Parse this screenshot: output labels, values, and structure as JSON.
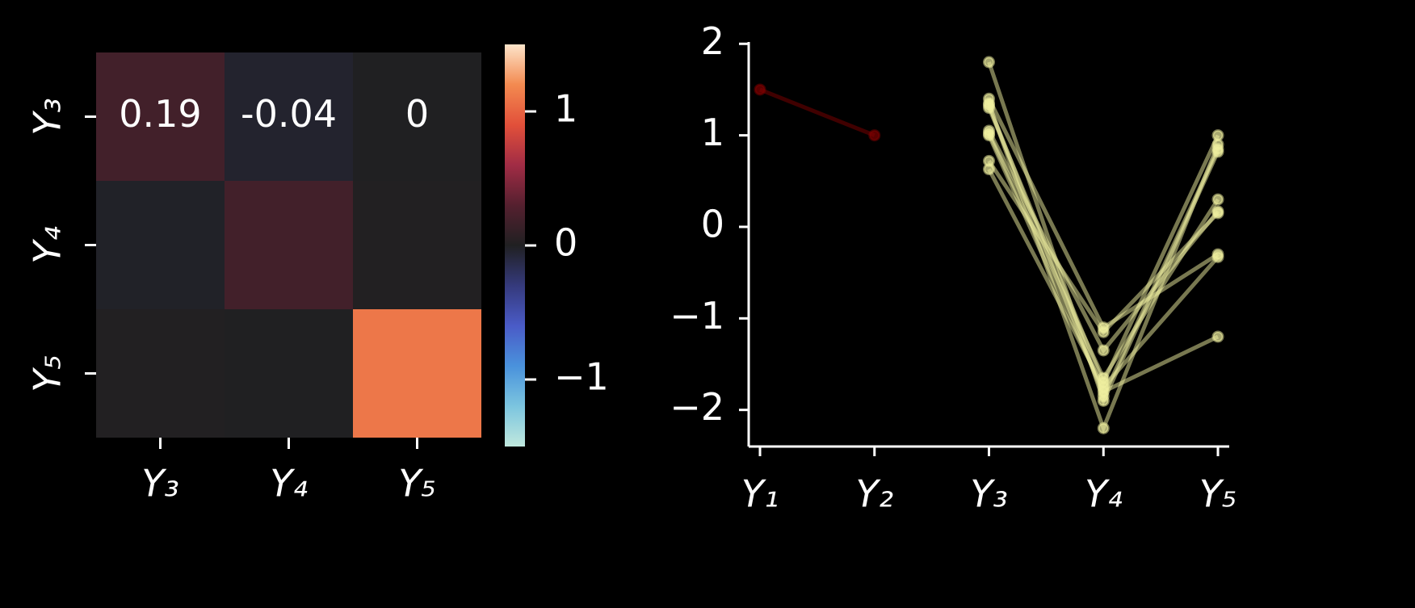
{
  "chart_data": [
    {
      "type": "heatmap",
      "categories": [
        "Y₃",
        "Y₄",
        "Y₅"
      ],
      "values": [
        [
          0.19,
          -0.04,
          0
        ],
        [
          -0.02,
          0.19,
          0.01
        ],
        [
          0.01,
          0.0,
          1.1
        ]
      ],
      "value_labels": [
        [
          "0.19",
          "-0.04",
          "0"
        ],
        [
          null,
          null,
          null
        ],
        [
          null,
          null,
          null
        ]
      ],
      "colorscale": [
        "#c0e8de",
        "#7cc5df",
        "#4a92dc",
        "#4a5bc7",
        "#353a7c",
        "#202022",
        "#55202f",
        "#a12c45",
        "#e2503a",
        "#f38a50",
        "#fde4ca"
      ],
      "clim": [
        -1.5,
        1.5
      ],
      "cticks": [
        1,
        0,
        {
          "value": -1,
          "label": "−1"
        }
      ]
    },
    {
      "type": "line",
      "categories": [
        "Y₁",
        "Y₂",
        "Y₃",
        "Y₄",
        "Y₅"
      ],
      "ylim": [
        -2.4,
        2.02
      ],
      "yticks": [
        2,
        1,
        0,
        {
          "value": -1,
          "label": "−1"
        },
        {
          "value": -2,
          "label": "−2"
        }
      ],
      "series": [
        {
          "color": "#800000",
          "values": [
            1.5,
            1.0,
            null,
            null,
            null
          ]
        },
        {
          "color": "#f0f0a0",
          "values": [
            null,
            null,
            1.8,
            -1.9,
            0.82
          ]
        },
        {
          "color": "#f0f0a0",
          "values": [
            null,
            null,
            1.4,
            -1.1,
            -0.3
          ]
        },
        {
          "color": "#f0f0a0",
          "values": [
            null,
            null,
            1.35,
            -2.2,
            0.9
          ]
        },
        {
          "color": "#f0f0a0",
          "values": [
            null,
            null,
            1.3,
            -1.7,
            1.0
          ]
        },
        {
          "color": "#f0f0a0",
          "values": [
            null,
            null,
            1.05,
            -1.35,
            0.17
          ]
        },
        {
          "color": "#f0f0a0",
          "values": [
            null,
            null,
            1.02,
            -1.65,
            0.3
          ]
        },
        {
          "color": "#f0f0a0",
          "values": [
            null,
            null,
            1.0,
            -1.8,
            -1.2
          ]
        },
        {
          "color": "#f0f0a0",
          "values": [
            null,
            null,
            0.72,
            -1.15,
            0.15
          ]
        },
        {
          "color": "#f0f0a0",
          "values": [
            null,
            null,
            0.63,
            -1.75,
            -0.33
          ]
        },
        {
          "color": "#f0f0a0",
          "values": [
            null,
            null,
            1.33,
            -1.85,
            0.85
          ]
        }
      ]
    }
  ]
}
